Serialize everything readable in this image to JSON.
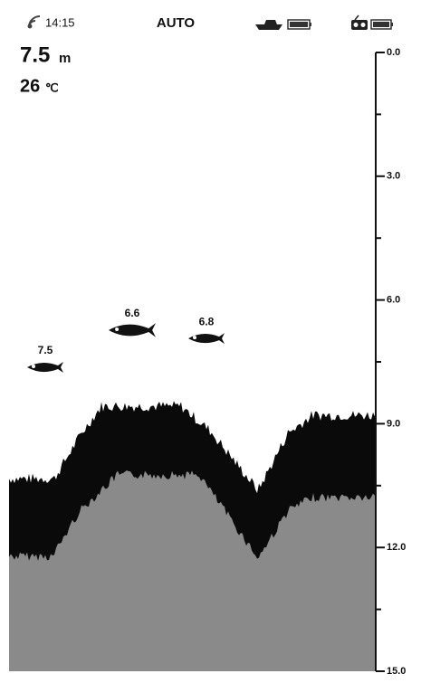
{
  "status_bar": {
    "time": "14:15",
    "mode": "AUTO"
  },
  "readings": {
    "depth": "7.5",
    "depth_unit": "m",
    "temperature": "26",
    "temperature_unit": "℃"
  },
  "scale": {
    "range": [
      0,
      15
    ],
    "ticks": [
      {
        "value": 0,
        "label": "0.0"
      },
      {
        "value": 3,
        "label": "3.0"
      },
      {
        "value": 6,
        "label": "6.0"
      },
      {
        "value": 9,
        "label": "9.0"
      },
      {
        "value": 12,
        "label": "12.0"
      },
      {
        "value": 15,
        "label": "15.0"
      }
    ]
  },
  "fish": [
    {
      "depth": 7.5,
      "label": "7.5"
    },
    {
      "depth": 6.6,
      "label": "6.6"
    },
    {
      "depth": 6.8,
      "label": "6.8"
    }
  ]
}
